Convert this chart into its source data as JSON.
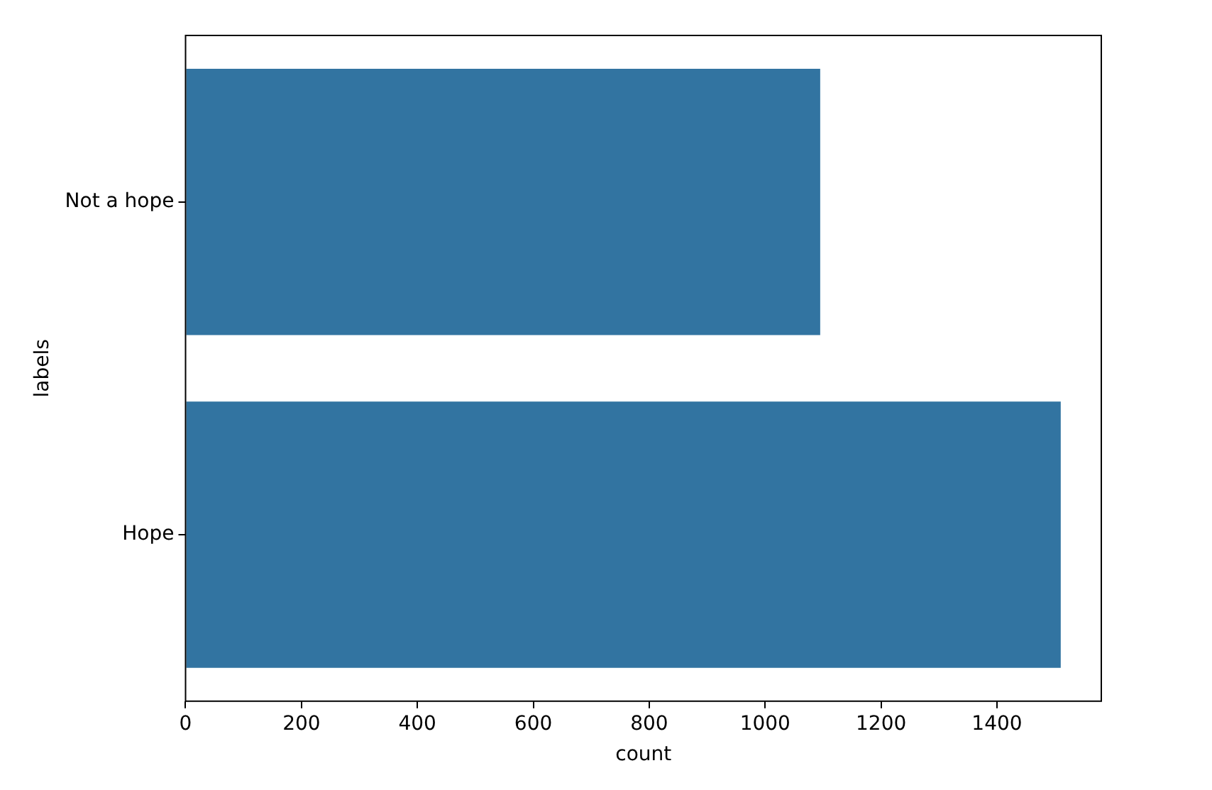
{
  "chart_data": {
    "type": "bar",
    "orientation": "horizontal",
    "categories": [
      "Not a hope",
      "Hope"
    ],
    "values": [
      1095,
      1510
    ],
    "color": "#3274a1",
    "xlabel": "count",
    "ylabel": "labels",
    "xlim": [
      0,
      1580
    ],
    "xticks": [
      0,
      200,
      400,
      600,
      800,
      1000,
      1200,
      1400
    ],
    "grid": false,
    "legend": false
  }
}
